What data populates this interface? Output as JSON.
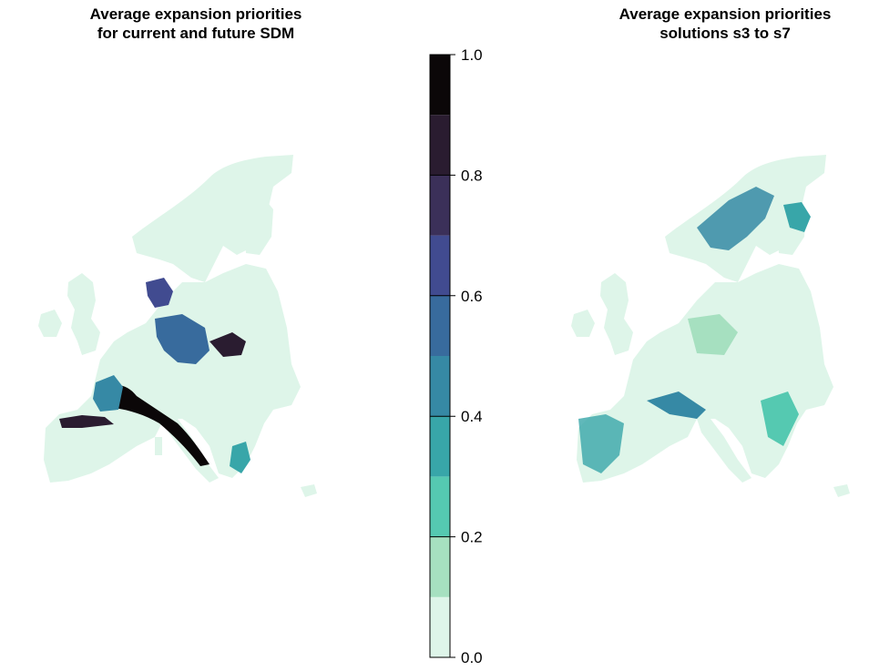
{
  "panels": {
    "left": {
      "title": "Average expansion priorities\nfor current and future SDM"
    },
    "right": {
      "title": "Average expansion priorities\nsolutions s3 to s7"
    }
  },
  "legend": {
    "range": [
      0.0,
      1.0
    ],
    "bins": [
      {
        "from": 0.0,
        "to": 0.1,
        "color": "#def5e9"
      },
      {
        "from": 0.1,
        "to": 0.2,
        "color": "#a6e0c0"
      },
      {
        "from": 0.2,
        "to": 0.3,
        "color": "#55c9b1"
      },
      {
        "from": 0.3,
        "to": 0.4,
        "color": "#38a6a9"
      },
      {
        "from": 0.4,
        "to": 0.5,
        "color": "#3689a5"
      },
      {
        "from": 0.5,
        "to": 0.6,
        "color": "#386b9d"
      },
      {
        "from": 0.6,
        "to": 0.7,
        "color": "#414b90"
      },
      {
        "from": 0.7,
        "to": 0.8,
        "color": "#3b3059"
      },
      {
        "from": 0.8,
        "to": 0.9,
        "color": "#2a1c30"
      },
      {
        "from": 0.9,
        "to": 1.0,
        "color": "#0b0708"
      }
    ],
    "ticks": [
      "0.0",
      "0.2",
      "0.4",
      "0.6",
      "0.8",
      "1.0"
    ]
  },
  "colors": {
    "land_low": "#def5e9",
    "hotspot_dark": "#0b0708",
    "hotspot_mid": "#3689a5",
    "hotspot_teal": "#38a6a9"
  }
}
